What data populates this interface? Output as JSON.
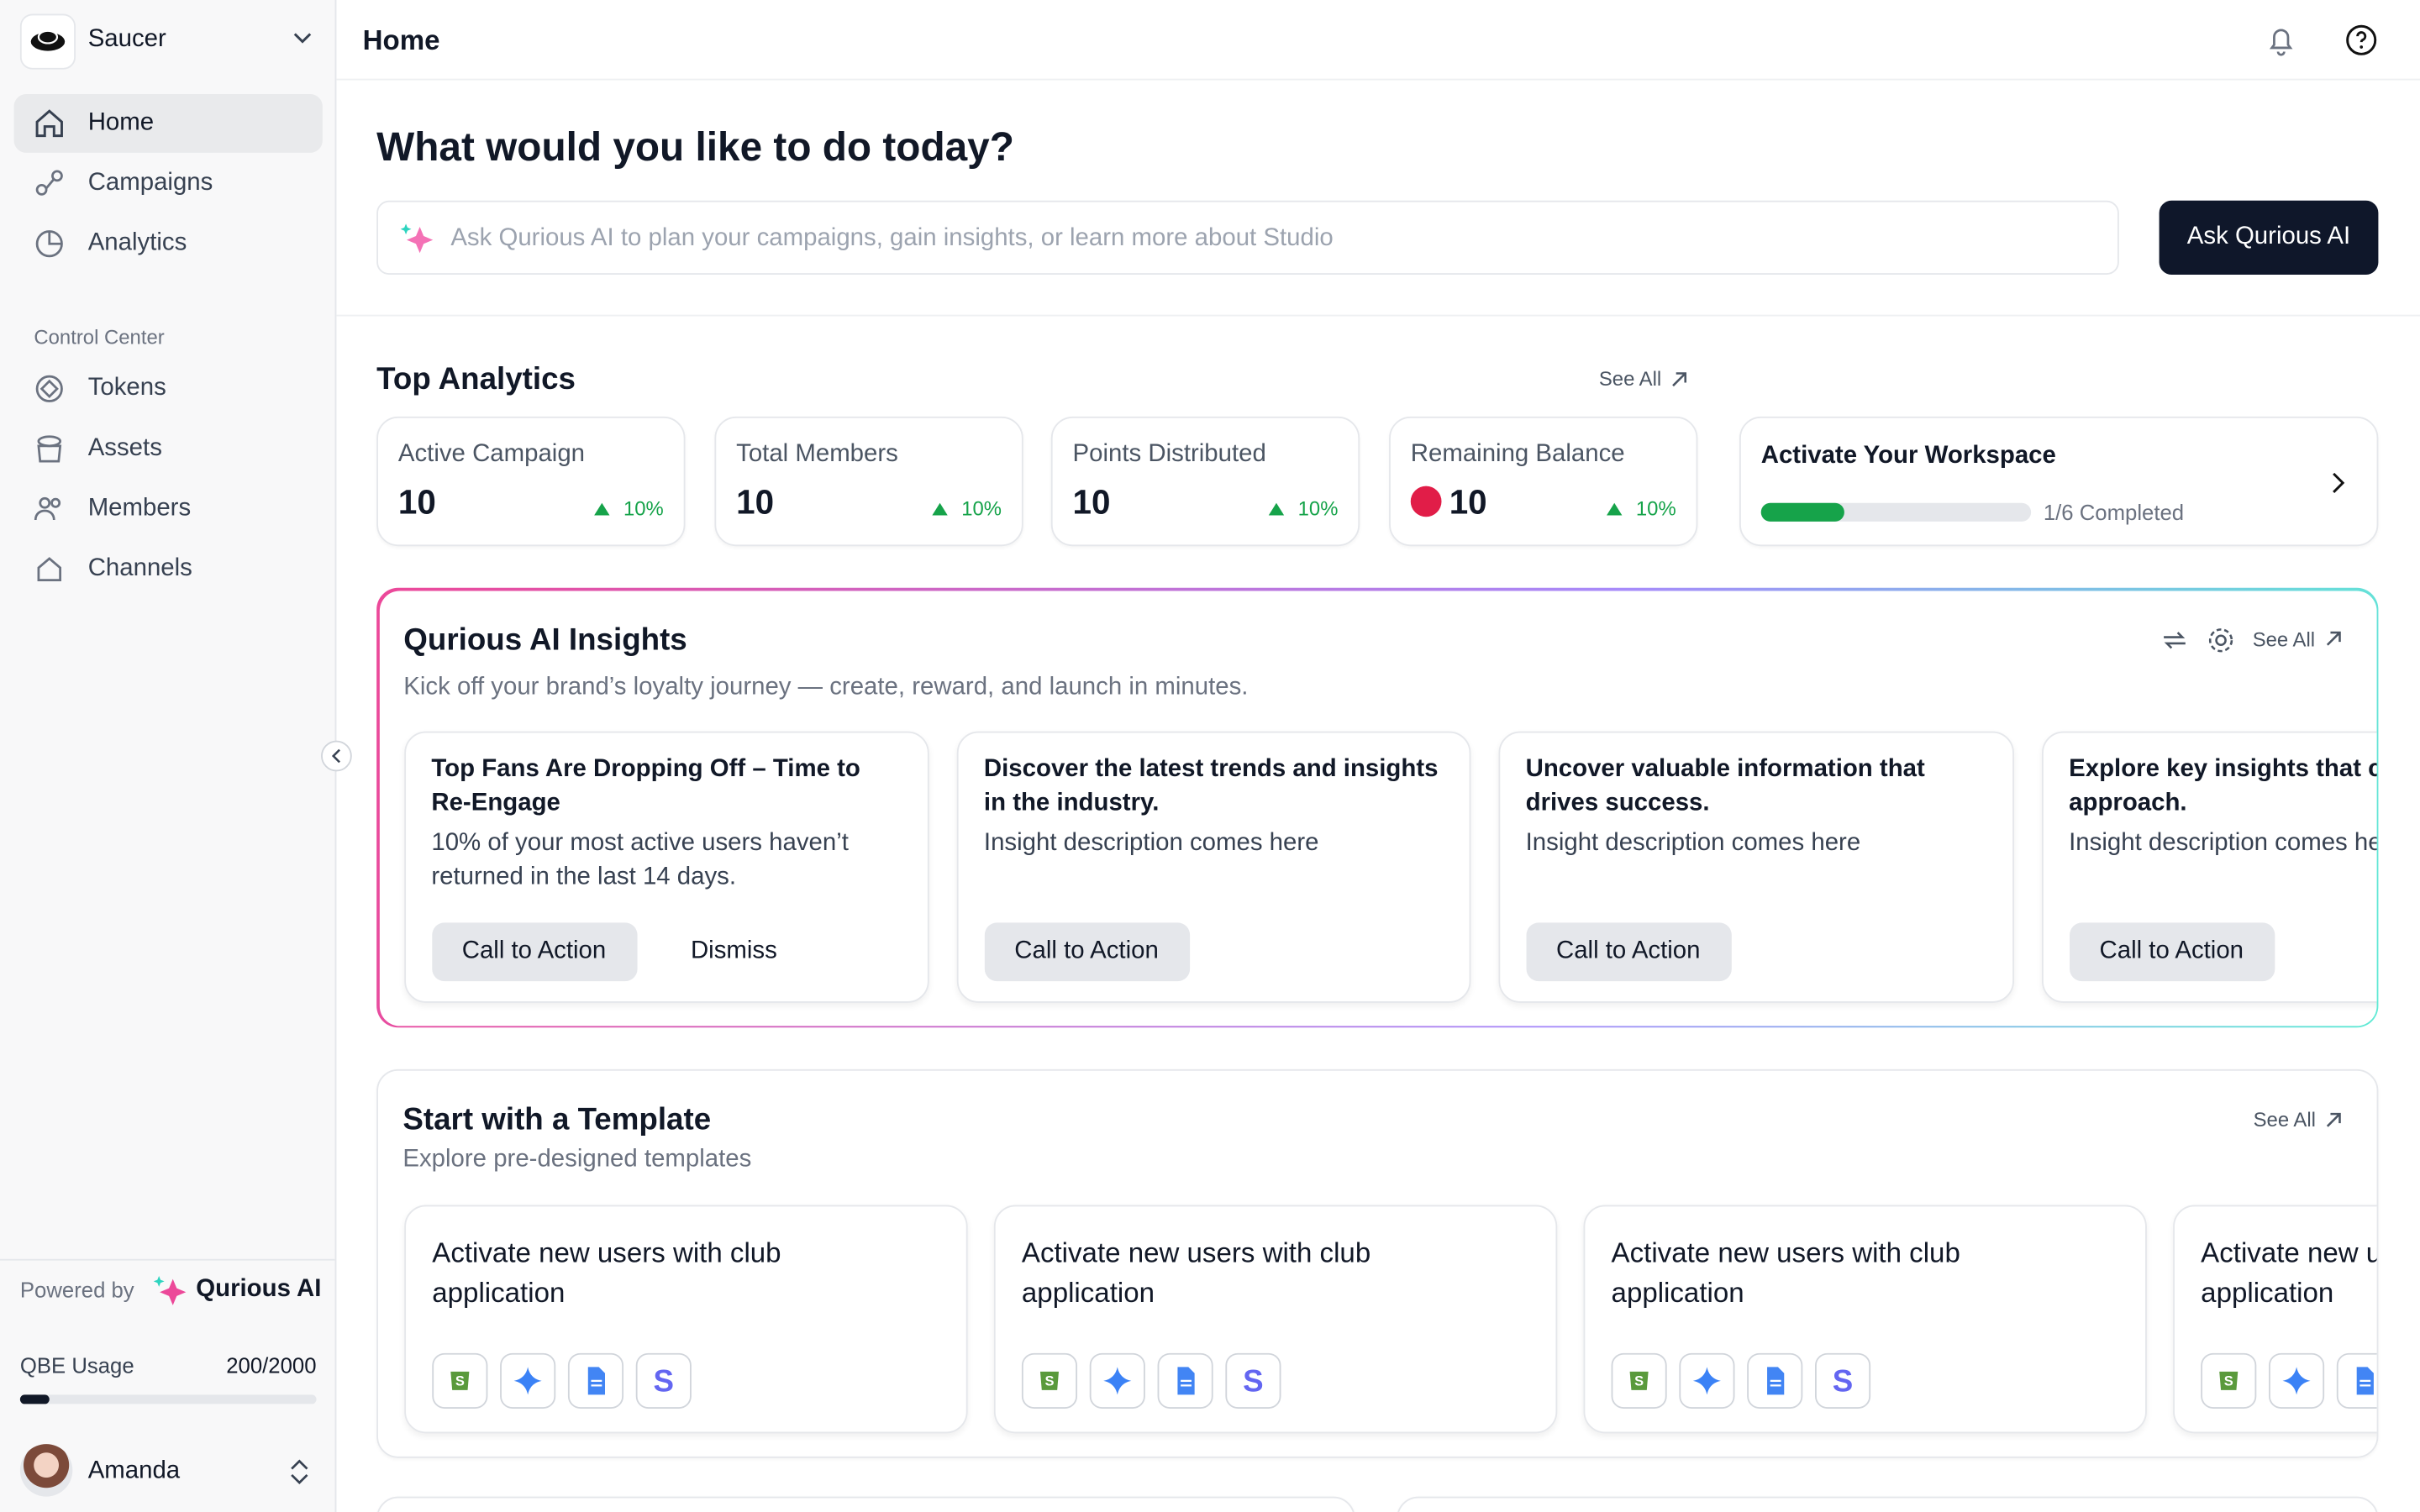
{
  "sidebar": {
    "workspace": "Saucer",
    "nav": [
      "Home",
      "Campaigns",
      "Analytics"
    ],
    "section_title": "Control Center",
    "control_nav": [
      "Tokens",
      "Assets",
      "Members",
      "Channels"
    ],
    "powered_by": "Powered by",
    "brand": "Qurious AI",
    "usage_label": "QBE Usage",
    "usage_value": "200/2000",
    "user": "Amanda"
  },
  "header": {
    "title": "Home"
  },
  "hero": {
    "title": "What would you like to do today?",
    "placeholder": "Ask Qurious AI to plan your campaigns, gain insights, or learn more about Studio",
    "button": "Ask Qurious AI"
  },
  "analytics": {
    "title": "Top Analytics",
    "see_all": "See All",
    "cards": [
      {
        "label": "Active Campaign",
        "value": "10",
        "change": "10%"
      },
      {
        "label": "Total Members",
        "value": "10",
        "change": "10%"
      },
      {
        "label": "Points Distributed",
        "value": "10",
        "change": "10%"
      },
      {
        "label": "Remaining Balance",
        "value": "10",
        "change": "10%"
      }
    ],
    "workspace": {
      "title": "Activate Your Workspace",
      "progress": "1/6 Completed"
    }
  },
  "insights": {
    "title": "Qurious AI Insights",
    "subtitle": "Kick off your brand’s loyalty journey — create, reward, and launch in minutes.",
    "see_all": "See All",
    "cards": [
      {
        "title": "Top Fans Are Dropping Off – Time to Re-Engage",
        "description": "10% of your most active users haven’t returned in the last 14 days.",
        "action": "Call to Action",
        "dismiss": "Dismiss"
      },
      {
        "title": "Discover the latest trends and insights in the industry.",
        "description": "Insight description comes here",
        "action": "Call to Action"
      },
      {
        "title": "Uncover valuable information that drives success.",
        "description": "Insight description comes here",
        "action": "Call to Action"
      },
      {
        "title": "Explore key insights that ca your approach.",
        "description": "Insight description comes here",
        "action": "Call to Action"
      }
    ]
  },
  "templates": {
    "title": "Start with a Template",
    "subtitle": "Explore pre-designed templates",
    "see_all": "See All",
    "cards": [
      {
        "title": "Activate new users with club application"
      },
      {
        "title": "Activate new users with club application"
      },
      {
        "title": "Activate new users with club application"
      },
      {
        "title": "Activate new users with club application"
      }
    ]
  }
}
